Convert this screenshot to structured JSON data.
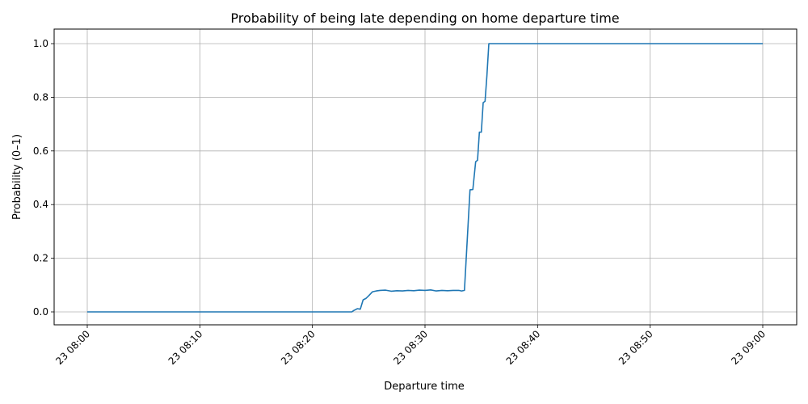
{
  "chart_data": {
    "type": "line",
    "title": "Probability of being late depending on home departure time",
    "xlabel": "Departure time",
    "ylabel": "Probability (0–1)",
    "xlim": [
      "08:00",
      "09:00"
    ],
    "ylim": [
      0.0,
      1.0
    ],
    "grid": true,
    "x_tick_labels": [
      "23 08:00",
      "23 08:10",
      "23 08:20",
      "23 08:30",
      "23 08:40",
      "23 08:50",
      "23 09:00"
    ],
    "y_tick_labels": [
      "0.0",
      "0.2",
      "0.4",
      "0.6",
      "0.8",
      "1.0"
    ],
    "series": [
      {
        "color": "#1f77b4",
        "x": [
          "08:00",
          "08:23:30",
          "08:23:40",
          "08:24:00",
          "08:24:15",
          "08:24:30",
          "08:24:45",
          "08:25:00",
          "08:25:20",
          "08:25:40",
          "08:26:00",
          "08:26:30",
          "08:27:00",
          "08:27:30",
          "08:28:00",
          "08:28:30",
          "08:29:00",
          "08:29:30",
          "08:30:00",
          "08:30:30",
          "08:31:00",
          "08:31:30",
          "08:32:00",
          "08:32:30",
          "08:33:00",
          "08:33:15",
          "08:33:30",
          "08:34:00",
          "08:34:15",
          "08:34:30",
          "08:34:40",
          "08:34:50",
          "08:35:00",
          "08:35:10",
          "08:35:20",
          "08:35:30",
          "08:35:40",
          "08:40:00",
          "08:50:00",
          "09:00:00"
        ],
        "values": [
          0.0,
          0.0,
          0.005,
          0.012,
          0.01,
          0.045,
          0.05,
          0.06,
          0.075,
          0.078,
          0.08,
          0.081,
          0.077,
          0.079,
          0.078,
          0.08,
          0.079,
          0.081,
          0.08,
          0.082,
          0.078,
          0.08,
          0.079,
          0.08,
          0.08,
          0.078,
          0.08,
          0.455,
          0.456,
          0.56,
          0.565,
          0.67,
          0.67,
          0.78,
          0.785,
          0.88,
          1.0,
          1.0,
          1.0,
          1.0
        ]
      }
    ]
  }
}
